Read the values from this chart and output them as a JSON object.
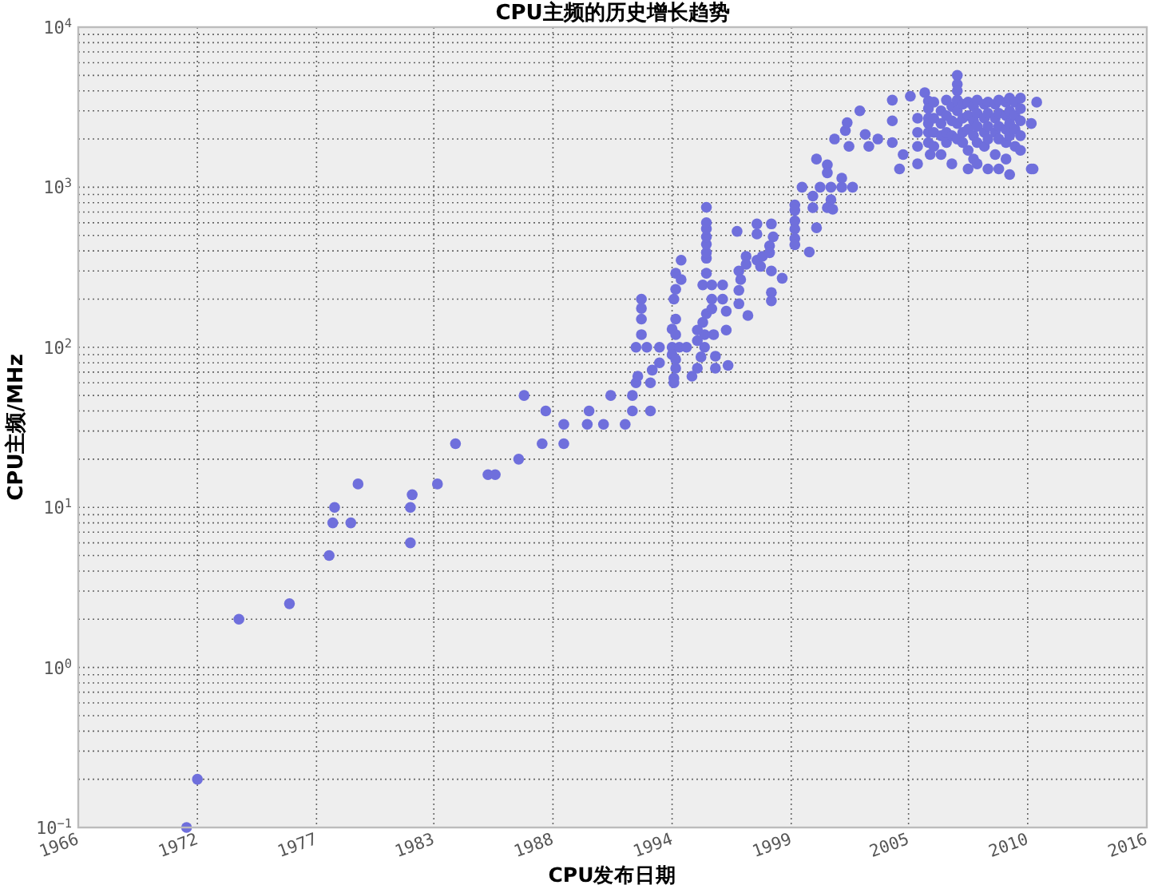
{
  "chart_data": {
    "type": "scatter",
    "title": "CPU主频的历史增长趋势",
    "xlabel": "CPU发布日期",
    "ylabel": "CPU主频/MHz",
    "color": "#6f6fdc",
    "marker": "circle",
    "log": "y",
    "grid": true,
    "xlim": [
      "1966-10",
      "2016-02"
    ],
    "xticks": [
      {
        "value": "1966-10",
        "label": "1966"
      },
      {
        "value": "1972-04",
        "label": "1972"
      },
      {
        "value": "1977-10",
        "label": "1977"
      },
      {
        "value": "1983-03",
        "label": "1983"
      },
      {
        "value": "1988-09",
        "label": "1988"
      },
      {
        "value": "1994-03",
        "label": "1994"
      },
      {
        "value": "1999-09",
        "label": "1999"
      },
      {
        "value": "2005-02",
        "label": "2005"
      },
      {
        "value": "2010-08",
        "label": "2010"
      },
      {
        "value": "2016-02",
        "label": "2016"
      }
    ],
    "ylim": [
      0.1,
      10000
    ],
    "yticks": [
      {
        "value": 0.1,
        "label": "10$^{−1}$"
      },
      {
        "value": 1,
        "label": "10$^{0}$"
      },
      {
        "value": 10,
        "label": "10$^{1}$"
      },
      {
        "value": 100,
        "label": "10$^{2}$"
      },
      {
        "value": 1000,
        "label": "10$^{3}$"
      },
      {
        "value": 10000,
        "label": "10$^{4}$"
      }
    ],
    "x": [
      "1971-10",
      "1972-04",
      "1974-03",
      "1976-07",
      "1978-05",
      "1978-07",
      "1978-08",
      "1979-05",
      "1979-09",
      "1982-02",
      "1982-02",
      "1982-03",
      "1983-05",
      "1984-03",
      "1985-09",
      "1986-01",
      "1987-02",
      "1987-05",
      "1988-03",
      "1988-05",
      "1989-03",
      "1989-03",
      "1990-04",
      "1990-05",
      "1991-01",
      "1991-05",
      "1992-01",
      "1992-05",
      "1992-05",
      "1993-03",
      "1992-07",
      "1992-08",
      "1993-03",
      "1993-04",
      "1993-08",
      "1992-07",
      "1993-01",
      "1993-08",
      "1994-03",
      "1994-07",
      "1994-11",
      "1992-10",
      "1992-10",
      "1992-10",
      "1992-10",
      "1994-08",
      "1994-05",
      "1994-08",
      "1994-05",
      "1994-04",
      "1994-05",
      "1994-03",
      "1994-05",
      "1994-03",
      "1994-05",
      "1994-05",
      "1994-04",
      "1994-04",
      "1995-02",
      "1995-05",
      "1995-07",
      "1995-05",
      "1995-09",
      "1995-09",
      "1996-02",
      "1996-03",
      "1996-03",
      "1996-10",
      "1995-05",
      "1995-08",
      "1995-10",
      "1996-01",
      "1996-01",
      "1995-08",
      "1996-01",
      "1996-07",
      "1996-07",
      "1996-09",
      "1996-09",
      "1995-10",
      "1995-10",
      "1995-10",
      "1995-10",
      "1995-10",
      "1995-10",
      "1995-10",
      "1995-10",
      "1997-04",
      "1997-08",
      "1997-08",
      "1997-05",
      "1997-03",
      "1997-04",
      "1997-04",
      "1997-09",
      "1998-02",
      "1998-02",
      "1998-02",
      "1998-04",
      "1998-05",
      "1998-10",
      "1998-10",
      "1998-10",
      "1998-10",
      "1998-09",
      "1998-09",
      "1998-11",
      "1999-04",
      "1999-11",
      "1999-11",
      "1999-11",
      "1999-11",
      "1999-11",
      "1999-11",
      "2000-07",
      "2000-09",
      "2000-11",
      "2000-03",
      "2001-01",
      "2001-07",
      "2002-01",
      "2002-07",
      "2000-09",
      "2001-07",
      "2001-05",
      "2001-08",
      "2000-11",
      "2001-05",
      "2001-05",
      "2002-01",
      "2001-09",
      "2002-03",
      "2002-04",
      "2002-05",
      "2002-11",
      "2003-02",
      "2003-04",
      "2003-09",
      "2004-05",
      "2004-05",
      "2004-05",
      "2004-09",
      "2004-11",
      "2005-03",
      "2005-07",
      "2005-07",
      "2005-07",
      "2005-07",
      "2005-11",
      "2006-01",
      "2006-01",
      "2006-01",
      "2006-01",
      "2006-01",
      "2006-01",
      "2006-02",
      "2006-04",
      "2006-04",
      "2006-04",
      "2006-04",
      "2006-08",
      "2006-08",
      "2006-08",
      "2006-08",
      "2006-11",
      "2006-11",
      "2006-11",
      "2006-11",
      "2007-02",
      "2007-02",
      "2007-02",
      "2007-02",
      "2007-05",
      "2007-05",
      "2007-05",
      "2007-05",
      "2007-05",
      "2007-05",
      "2007-05",
      "2007-08",
      "2007-08",
      "2007-08",
      "2007-08",
      "2007-11",
      "2007-11",
      "2007-11",
      "2007-11",
      "2007-11",
      "2008-02",
      "2008-02",
      "2008-02",
      "2008-02",
      "2008-04",
      "2008-04",
      "2008-04",
      "2008-04",
      "2008-04",
      "2008-08",
      "2008-08",
      "2008-08",
      "2008-08",
      "2008-10",
      "2008-10",
      "2008-10",
      "2008-10",
      "2008-10",
      "2009-02",
      "2009-02",
      "2009-02",
      "2009-02",
      "2009-04",
      "2009-04",
      "2009-04",
      "2009-04",
      "2009-04",
      "2009-08",
      "2009-08",
      "2009-08",
      "2009-08",
      "2009-08",
      "2009-10",
      "2009-10",
      "2009-10",
      "2009-10",
      "2009-10",
      "2010-01",
      "2010-01",
      "2010-01",
      "2010-01",
      "2010-04",
      "2010-04",
      "2010-04",
      "2010-04",
      "2010-04",
      "2010-10",
      "2010-10",
      "2010-11",
      "2011-01"
    ],
    "values": [
      0.1,
      0.2,
      2,
      2.5,
      5,
      8,
      10,
      8,
      14,
      6,
      10,
      12,
      14,
      25,
      16,
      16,
      20,
      50,
      25,
      40,
      25,
      33,
      33,
      40,
      33,
      50,
      33,
      40,
      50,
      40,
      60,
      66,
      60,
      72,
      80,
      100,
      100,
      100,
      100,
      100,
      100,
      120,
      150,
      175,
      200,
      350,
      290,
      265,
      230,
      200,
      150,
      130,
      120,
      90,
      84,
      74,
      64,
      60,
      66,
      74,
      87,
      110,
      100,
      120,
      120,
      88,
      74,
      77,
      128,
      143,
      162,
      174,
      200,
      245,
      245,
      200,
      245,
      168,
      128,
      290,
      360,
      390,
      440,
      490,
      550,
      600,
      750,
      300,
      370,
      330,
      265,
      530,
      227,
      187,
      158,
      590,
      510,
      350,
      320,
      370,
      300,
      220,
      195,
      590,
      430,
      390,
      490,
      270,
      775,
      717,
      616,
      548,
      478,
      437,
      394,
      745,
      558,
      1000,
      1000,
      1000,
      1000,
      1000,
      880,
      836,
      745,
      728,
      1500,
      1380,
      1230,
      1140,
      2000,
      2260,
      2530,
      1800,
      3000,
      2140,
      1800,
      2000,
      3500,
      2600,
      1900,
      1300,
      1600,
      3700,
      2700,
      2200,
      1800,
      1400,
      3900,
      3450,
      3100,
      2700,
      2500,
      2200,
      1900,
      1600,
      3400,
      2700,
      2200,
      1800,
      3000,
      2500,
      2100,
      1600,
      3500,
      2800,
      2200,
      1900,
      3200,
      2600,
      2100,
      1400,
      5000,
      4400,
      4000,
      3500,
      3000,
      2500,
      2000,
      3300,
      2700,
      2200,
      1900,
      3400,
      2800,
      2300,
      1700,
      1300,
      3200,
      2600,
      2100,
      1500,
      3500,
      2900,
      2400,
      1900,
      1400,
      3300,
      2700,
      2200,
      1800,
      3400,
      2900,
      2400,
      2000,
      1300,
      3300,
      2700,
      2200,
      1600,
      3500,
      2900,
      2400,
      2000,
      1300,
      3400,
      2800,
      2300,
      1900,
      1500,
      3600,
      3000,
      2500,
      2100,
      1200,
      3400,
      2800,
      2300,
      1800,
      3600,
      3100,
      2600,
      2100,
      1700,
      2500,
      1300,
      1300,
      3400
    ]
  }
}
